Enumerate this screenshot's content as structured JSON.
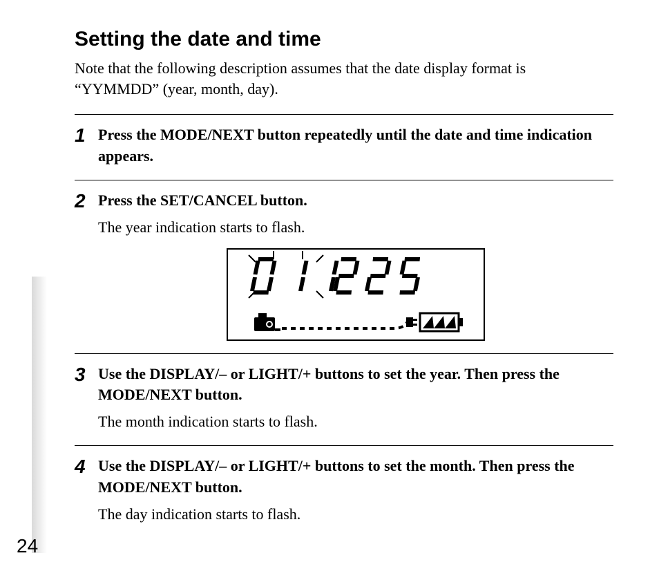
{
  "page_number": "24",
  "heading": "Setting the date and time",
  "intro": "Note that the following description assumes that the date display format is “YYMMDD” (year, month, day).",
  "steps": [
    {
      "n": "1",
      "lead": "Press the MODE/NEXT button repeatedly until the date and time indication appears.",
      "sub": ""
    },
    {
      "n": "2",
      "lead": "Press the SET/CANCEL button.",
      "sub": "The year indication starts to flash."
    },
    {
      "n": "3",
      "lead": "Use the DISPLAY/– or LIGHT/+ buttons to set the year. Then press the MODE/NEXT button.",
      "sub": "The month indication starts to flash."
    },
    {
      "n": "4",
      "lead": "Use the DISPLAY/– or LIGHT/+ buttons to set the month. Then press the MODE/NEXT button.",
      "sub": "The day indication starts to flash."
    }
  ],
  "lcd": {
    "digits": "011225",
    "flashing_positions": [
      0,
      1
    ],
    "segment_color": "#000000",
    "border_color": "#000000",
    "background": "#ffffff",
    "battery_level": 3,
    "battery_max": 3
  },
  "colors": {
    "text": "#000000",
    "rule": "#000000",
    "page_bg": "#ffffff",
    "gutter_shadow": "#d9d9d9"
  },
  "fonts": {
    "heading_family": "Helvetica",
    "heading_weight": 900,
    "heading_size_pt": 22,
    "body_family": "Times",
    "body_size_pt": 16,
    "step_number_italic": true
  }
}
